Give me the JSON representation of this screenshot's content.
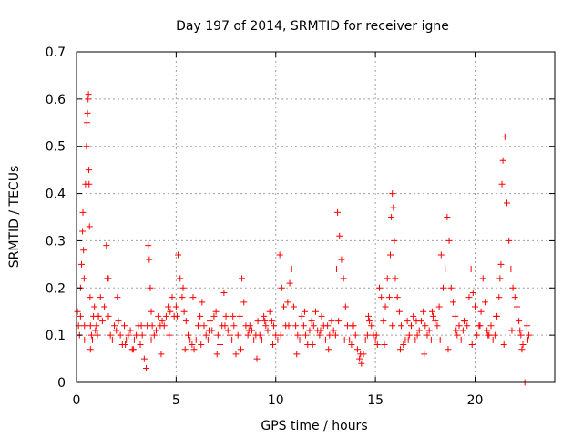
{
  "chart_data": {
    "type": "scatter",
    "title": "Day 197 of 2014, SRMTID for receiver igne",
    "xlabel": "GPS time / hours",
    "ylabel": "SRMTID / TECUs",
    "xlim": [
      0,
      24
    ],
    "ylim": [
      0,
      0.7
    ],
    "x_ticks": [
      0,
      5,
      10,
      15,
      20
    ],
    "y_ticks": [
      0,
      0.1,
      0.2,
      0.3,
      0.4,
      0.5,
      0.6,
      0.7
    ],
    "x_tick_labels": [
      "0",
      "5",
      "10",
      "15",
      "20"
    ],
    "y_tick_labels": [
      "0",
      "0.1",
      "0.2",
      "0.3",
      "0.4",
      "0.5",
      "0.6",
      "0.7"
    ],
    "grid": true,
    "marker": "plus",
    "series": [
      {
        "name": "SRMTID",
        "color": "#ff0000",
        "x": [
          0.05,
          0.1,
          0.15,
          0.2,
          0.25,
          0.3,
          0.32,
          0.35,
          0.38,
          0.4,
          0.45,
          0.5,
          0.52,
          0.55,
          0.58,
          0.6,
          0.62,
          0.63,
          0.65,
          0.68,
          0.7,
          0.75,
          0.8,
          0.85,
          0.9,
          0.95,
          1.0,
          1.05,
          1.1,
          1.2,
          1.3,
          1.4,
          1.5,
          1.55,
          1.6,
          1.7,
          1.8,
          1.9,
          2.0,
          2.1,
          2.2,
          2.3,
          2.4,
          2.5,
          2.6,
          2.7,
          2.8,
          2.9,
          3.0,
          3.1,
          3.2,
          3.3,
          3.4,
          3.5,
          3.55,
          3.6,
          3.65,
          3.7,
          3.75,
          3.8,
          3.9,
          4.0,
          4.1,
          4.2,
          4.3,
          4.4,
          4.5,
          4.6,
          4.7,
          4.8,
          4.9,
          5.0,
          5.1,
          5.2,
          5.3,
          5.35,
          5.4,
          5.5,
          5.6,
          5.7,
          5.8,
          5.9,
          6.0,
          6.1,
          6.2,
          6.3,
          6.4,
          6.5,
          6.6,
          6.7,
          6.8,
          6.9,
          7.0,
          7.1,
          7.2,
          7.3,
          7.4,
          7.5,
          7.6,
          7.7,
          7.8,
          7.9,
          8.0,
          8.1,
          8.2,
          8.3,
          8.4,
          8.5,
          8.6,
          8.7,
          8.8,
          8.9,
          9.0,
          9.1,
          9.2,
          9.3,
          9.4,
          9.5,
          9.6,
          9.7,
          9.8,
          9.9,
          10.0,
          10.1,
          10.2,
          10.3,
          10.4,
          10.5,
          10.6,
          10.7,
          10.8,
          10.9,
          11.0,
          11.1,
          11.2,
          11.3,
          11.4,
          11.5,
          11.6,
          11.7,
          11.8,
          11.9,
          12.0,
          12.1,
          12.2,
          12.3,
          12.4,
          12.5,
          12.6,
          12.7,
          12.8,
          12.9,
          13.0,
          13.05,
          13.1,
          13.2,
          13.3,
          13.4,
          13.5,
          13.6,
          13.7,
          13.8,
          13.9,
          14.0,
          14.1,
          14.2,
          14.3,
          14.4,
          14.5,
          14.6,
          14.7,
          14.8,
          14.9,
          15.0,
          15.1,
          15.2,
          15.3,
          15.4,
          15.5,
          15.6,
          15.7,
          15.75,
          15.8,
          15.85,
          15.9,
          15.95,
          16.0,
          16.1,
          16.2,
          16.3,
          16.4,
          16.5,
          16.6,
          16.7,
          16.8,
          16.9,
          17.0,
          17.1,
          17.2,
          17.3,
          17.4,
          17.5,
          17.6,
          17.7,
          17.8,
          17.9,
          18.0,
          18.1,
          18.2,
          18.3,
          18.4,
          18.5,
          18.6,
          18.7,
          18.8,
          18.9,
          19.0,
          19.1,
          19.2,
          19.3,
          19.4,
          19.5,
          19.6,
          19.7,
          19.8,
          19.9,
          20.0,
          20.1,
          20.2,
          20.3,
          20.4,
          20.5,
          20.6,
          20.7,
          20.8,
          20.9,
          21.0,
          21.1,
          21.2,
          21.25,
          21.3,
          21.35,
          21.4,
          21.5,
          21.6,
          21.7,
          21.8,
          21.9,
          22.0,
          22.1,
          22.2,
          22.25,
          22.3,
          22.4,
          22.5,
          22.6,
          22.7,
          0.2,
          0.4,
          0.7,
          1.1,
          1.6,
          2.05,
          2.45,
          2.85,
          3.25,
          3.75,
          4.25,
          4.65,
          5.05,
          5.45,
          5.85,
          6.25,
          6.65,
          7.05,
          7.45,
          7.85,
          8.25,
          8.65,
          9.05,
          9.45,
          9.85,
          10.25,
          10.65,
          11.05,
          11.45,
          11.85,
          12.25,
          12.65,
          13.15,
          13.45,
          13.85,
          14.25,
          14.65,
          15.05,
          15.45,
          15.85,
          16.25,
          16.65,
          17.05,
          17.45,
          17.85,
          18.25,
          18.65,
          19.05,
          19.45,
          19.85,
          20.25,
          20.65,
          21.05,
          21.45,
          21.85,
          22.35,
          22.65
        ],
        "y": [
          0.15,
          0.12,
          0.1,
          0.2,
          0.25,
          0.32,
          0.36,
          0.28,
          0.22,
          0.12,
          0.42,
          0.5,
          0.55,
          0.57,
          0.6,
          0.61,
          0.45,
          0.42,
          0.33,
          0.18,
          0.12,
          0.1,
          0.09,
          0.14,
          0.16,
          0.11,
          0.12,
          0.1,
          0.14,
          0.18,
          0.13,
          0.16,
          0.29,
          0.22,
          0.14,
          0.1,
          0.09,
          0.12,
          0.11,
          0.13,
          0.1,
          0.08,
          0.12,
          0.09,
          0.1,
          0.11,
          0.07,
          0.09,
          0.1,
          0.12,
          0.08,
          0.1,
          0.05,
          0.03,
          0.12,
          0.29,
          0.26,
          0.2,
          0.15,
          0.12,
          0.1,
          0.11,
          0.14,
          0.12,
          0.13,
          0.12,
          0.14,
          0.16,
          0.15,
          0.18,
          0.14,
          0.16,
          0.27,
          0.22,
          0.18,
          0.2,
          0.15,
          0.13,
          0.1,
          0.09,
          0.08,
          0.07,
          0.09,
          0.12,
          0.14,
          0.17,
          0.12,
          0.1,
          0.09,
          0.13,
          0.11,
          0.14,
          0.15,
          0.1,
          0.08,
          0.12,
          0.19,
          0.14,
          0.11,
          0.1,
          0.09,
          0.12,
          0.06,
          0.1,
          0.14,
          0.22,
          0.17,
          0.12,
          0.1,
          0.12,
          0.11,
          0.09,
          0.1,
          0.13,
          0.1,
          0.09,
          0.14,
          0.12,
          0.11,
          0.15,
          0.13,
          0.12,
          0.1,
          0.09,
          0.27,
          0.2,
          0.16,
          0.12,
          0.17,
          0.21,
          0.24,
          0.16,
          0.12,
          0.1,
          0.09,
          0.14,
          0.12,
          0.1,
          0.08,
          0.11,
          0.13,
          0.12,
          0.15,
          0.11,
          0.1,
          0.14,
          0.12,
          0.09,
          0.12,
          0.1,
          0.13,
          0.11,
          0.1,
          0.24,
          0.36,
          0.31,
          0.26,
          0.22,
          0.16,
          0.12,
          0.09,
          0.08,
          0.12,
          0.1,
          0.07,
          0.05,
          0.04,
          0.06,
          0.09,
          0.1,
          0.13,
          0.12,
          0.1,
          0.09,
          0.08,
          0.2,
          0.18,
          0.13,
          0.16,
          0.22,
          0.18,
          0.27,
          0.35,
          0.4,
          0.37,
          0.3,
          0.22,
          0.18,
          0.15,
          0.12,
          0.08,
          0.09,
          0.13,
          0.1,
          0.12,
          0.14,
          0.09,
          0.1,
          0.11,
          0.13,
          0.15,
          0.12,
          0.1,
          0.11,
          0.09,
          0.14,
          0.13,
          0.12,
          0.16,
          0.27,
          0.2,
          0.24,
          0.35,
          0.3,
          0.2,
          0.17,
          0.14,
          0.1,
          0.12,
          0.09,
          0.11,
          0.13,
          0.12,
          0.18,
          0.24,
          0.19,
          0.16,
          0.1,
          0.12,
          0.15,
          0.22,
          0.17,
          0.11,
          0.1,
          0.12,
          0.09,
          0.1,
          0.14,
          0.18,
          0.22,
          0.25,
          0.42,
          0.47,
          0.52,
          0.38,
          0.3,
          0.24,
          0.2,
          0.18,
          0.16,
          0.13,
          0.11,
          0.1,
          0.08,
          0.0,
          0.12,
          0.1,
          0.14,
          0.09,
          0.07,
          0.14,
          0.22,
          0.18,
          0.08,
          0.07,
          0.12,
          0.09,
          0.06,
          0.1,
          0.14,
          0.07,
          0.18,
          0.08,
          0.11,
          0.06,
          0.12,
          0.14,
          0.07,
          0.11,
          0.05,
          0.13,
          0.08,
          0.1,
          0.12,
          0.06,
          0.15,
          0.08,
          0.11,
          0.07,
          0.13,
          0.09,
          0.12,
          0.06,
          0.14,
          0.1,
          0.08,
          0.12,
          0.07,
          0.09,
          0.13,
          0.06,
          0.15,
          0.09,
          0.07,
          0.11,
          0.13,
          0.08,
          0.12,
          0.1,
          0.14,
          0.08,
          0.11,
          0.07,
          0.09
        ]
      }
    ]
  }
}
